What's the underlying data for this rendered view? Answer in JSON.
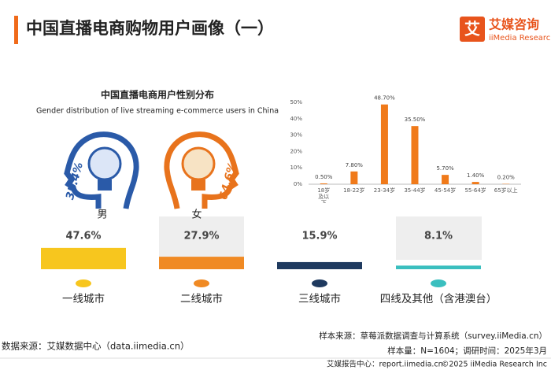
{
  "header": {
    "title": "中国直播电商购物用户画像（一）",
    "logo_icon": "艾",
    "logo_name": "艾媒咨询",
    "logo_en": "iiMedia Research"
  },
  "chart_data": [
    {
      "type": "icon",
      "title": "中国直播电商用户性别分布",
      "subtitle": "Gender distribution of live streaming e-commerce users in China",
      "categories": [
        "男",
        "女"
      ],
      "values": [
        35.4,
        64.6
      ],
      "value_labels": [
        "35.4%",
        "64.6%"
      ],
      "colors": [
        "#2a5aa8",
        "#e8731c"
      ]
    },
    {
      "type": "bar",
      "categories": [
        "18岁及以下",
        "18-22岁",
        "23-34岁",
        "35-44岁",
        "45-54岁",
        "55-64岁",
        "65岁以上"
      ],
      "values": [
        0.5,
        7.8,
        48.7,
        35.5,
        5.7,
        1.4,
        0.2
      ],
      "value_labels": [
        "0.50%",
        "7.80%",
        "48.70%",
        "35.50%",
        "5.70%",
        "1.40%",
        "0.20%"
      ],
      "color": "#f07a1a",
      "ylim": [
        0,
        50
      ],
      "yticks": [
        {
          "value": 0,
          "label": "0%"
        },
        {
          "value": 10,
          "label": "10%"
        },
        {
          "value": 20,
          "label": "20%"
        },
        {
          "value": 30,
          "label": "30%"
        },
        {
          "value": 40,
          "label": "40%"
        },
        {
          "value": 50,
          "label": "50%"
        }
      ]
    },
    {
      "type": "tier",
      "categories": [
        "一线城市",
        "二线城市",
        "三线城市",
        "四线及其他（含港澳台）"
      ],
      "values": [
        47.6,
        27.9,
        15.9,
        8.1
      ],
      "value_labels": [
        "47.6%",
        "27.9%",
        "15.9%",
        "8.1%"
      ],
      "colors": [
        "#f7c61e",
        "#f08a24",
        "#1f3a5f",
        "#3bbfbf"
      ]
    }
  ],
  "footer": {
    "sample_source": "样本来源：草莓派数据调查与计算系统（survey.iiMedia.cn）",
    "sample_size": "样本量：N=1604；调研时间：2025年3月",
    "data_source": "数据来源：艾媒数据中心（data.iimedia.cn）",
    "report_center": "艾媒报告中心：report.iimedia.cn",
    "copyright": "©2025  iiMedia Research Inc"
  }
}
